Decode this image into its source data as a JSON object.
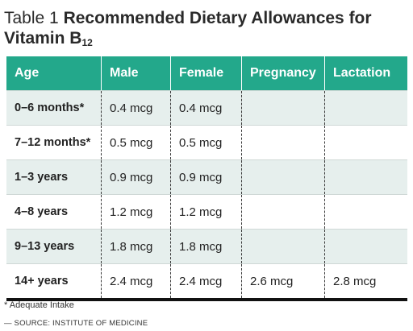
{
  "title": {
    "prefix": "Table 1",
    "main": "Recommended Dietary Allowances for Vitamin B",
    "subscript": "12"
  },
  "headers": [
    "Age",
    "Male",
    "Female",
    "Pregnancy",
    "Lactation"
  ],
  "rows": [
    [
      "0–6 months*",
      "0.4 mcg",
      "0.4 mcg",
      "",
      ""
    ],
    [
      "7–12 months*",
      "0.5 mcg",
      "0.5 mcg",
      "",
      ""
    ],
    [
      "1–3 years",
      "0.9 mcg",
      "0.9 mcg",
      "",
      ""
    ],
    [
      "4–8 years",
      "1.2 mcg",
      "1.2 mcg",
      "",
      ""
    ],
    [
      "9–13 years",
      "1.8 mcg",
      "1.8 mcg",
      "",
      ""
    ],
    [
      "14+ years",
      "2.4 mcg",
      "2.4 mcg",
      "2.6 mcg",
      "2.8 mcg"
    ]
  ],
  "footnote": "* Adequate Intake",
  "source": "— SOURCE: INSTITUTE OF MEDICINE",
  "colors": {
    "header_bg": "#23a88b",
    "stripe": "#e6efed"
  }
}
